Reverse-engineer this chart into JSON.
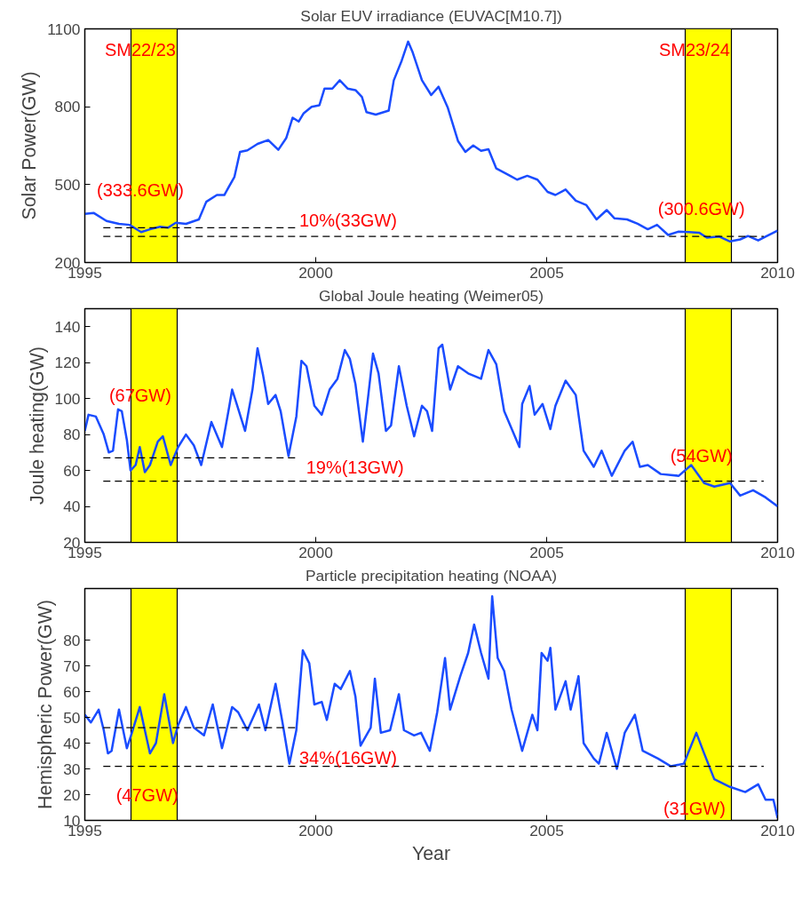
{
  "chart_data": [
    {
      "type": "line",
      "title": "Solar EUV irradiance (EUVAC[M10.7])",
      "ylabel": "Solar Power(GW)",
      "xlim": [
        1995,
        2010
      ],
      "xticks": [
        1995,
        2000,
        2005,
        2010
      ],
      "ylim": [
        200,
        1100
      ],
      "yticks": [
        200,
        500,
        800,
        1100
      ],
      "grid": false,
      "series": [
        {
          "color": "#1a4cff",
          "x": [
            1995.0,
            1995.19,
            1995.47,
            1995.74,
            1995.97,
            1996.22,
            1996.41,
            1996.63,
            1996.8,
            1996.97,
            1997.19,
            1997.47,
            1997.63,
            1997.86,
            1998.02,
            1998.24,
            1998.36,
            1998.52,
            1998.74,
            1998.97,
            1999.19,
            1999.36,
            1999.5,
            1999.63,
            1999.74,
            1999.91,
            2000.08,
            2000.19,
            2000.36,
            2000.52,
            2000.69,
            2000.86,
            2001.0,
            2001.1,
            2001.3,
            2001.58,
            2001.69,
            2001.86,
            2002.0,
            2002.1,
            2002.3,
            2002.5,
            2002.66,
            2002.86,
            2003.08,
            2003.24,
            2003.41,
            2003.58,
            2003.74,
            2003.91,
            2004.19,
            2004.36,
            2004.58,
            2004.8,
            2005.02,
            2005.19,
            2005.41,
            2005.63,
            2005.86,
            2006.08,
            2006.3,
            2006.47,
            2006.74,
            2006.97,
            2007.19,
            2007.39,
            2007.63,
            2007.86,
            2008.08,
            2008.3,
            2008.47,
            2008.74,
            2008.97,
            2009.19,
            2009.36,
            2009.58,
            2009.74,
            2010.0
          ],
          "values": [
            387,
            391,
            360,
            349,
            345,
            317,
            328,
            338,
            334,
            353,
            349,
            366,
            434,
            460,
            460,
            530,
            626,
            632,
            657,
            672,
            634,
            679,
            758,
            743,
            775,
            800,
            806,
            870,
            870,
            902,
            870,
            864,
            838,
            779,
            770,
            785,
            902,
            977,
            1051,
            1009,
            902,
            845,
            877,
            796,
            668,
            626,
            651,
            630,
            636,
            562,
            536,
            519,
            534,
            519,
            472,
            460,
            481,
            438,
            421,
            366,
            402,
            370,
            366,
            349,
            328,
            345,
            306,
            319,
            317,
            315,
            296,
            300,
            281,
            289,
            302,
            285,
            300,
            323
          ]
        },
        {
          "type": "line",
          "color": "#000000",
          "line_style": "dashed",
          "x": [
            1995.4,
            1999.6
          ],
          "values": [
            333.6,
            333.6
          ]
        },
        {
          "type": "line",
          "color": "#000000",
          "line_style": "dashed",
          "x": [
            1995.4,
            2009.7
          ],
          "values": [
            300.6,
            300.6
          ]
        }
      ],
      "bands": [
        {
          "axis": "x",
          "from": 1996,
          "to": 1997,
          "color": "#ffff00"
        },
        {
          "axis": "x",
          "from": 2008,
          "to": 2009,
          "color": "#ffff00"
        }
      ],
      "annotations": [
        "SM22/23",
        "SM23/24",
        "(333.6GW)",
        "10%(33GW)",
        "(300.6GW)"
      ]
    },
    {
      "type": "line",
      "title": "Global Joule heating (Weimer05)",
      "ylabel": "Joule heating(GW)",
      "xlim": [
        1995,
        2010
      ],
      "xticks": [
        1995,
        2000,
        2005,
        2010
      ],
      "ylim": [
        20,
        150
      ],
      "yticks": [
        20,
        40,
        60,
        80,
        100,
        120,
        140
      ],
      "grid": false,
      "series": [
        {
          "color": "#1a4cff",
          "x": [
            1995.0,
            1995.08,
            1995.24,
            1995.41,
            1995.52,
            1995.61,
            1995.72,
            1995.8,
            1995.91,
            1995.99,
            1996.1,
            1996.19,
            1996.3,
            1996.41,
            1996.58,
            1996.69,
            1996.86,
            1997.02,
            1997.19,
            1997.36,
            1997.52,
            1997.74,
            1997.97,
            1998.13,
            1998.19,
            1998.3,
            1998.47,
            1998.63,
            1998.74,
            1998.86,
            1998.97,
            1999.13,
            1999.24,
            1999.41,
            1999.58,
            1999.69,
            1999.8,
            1999.97,
            2000.13,
            2000.3,
            2000.47,
            2000.63,
            2000.74,
            2000.86,
            2001.02,
            2001.13,
            2001.24,
            2001.36,
            2001.52,
            2001.63,
            2001.8,
            2001.97,
            2002.13,
            2002.3,
            2002.41,
            2002.52,
            2002.66,
            2002.74,
            2002.91,
            2003.08,
            2003.3,
            2003.58,
            2003.74,
            2003.91,
            2004.08,
            2004.41,
            2004.47,
            2004.63,
            2004.74,
            2004.91,
            2005.08,
            2005.19,
            2005.41,
            2005.63,
            2005.8,
            2006.02,
            2006.19,
            2006.41,
            2006.69,
            2006.86,
            2007.02,
            2007.19,
            2007.47,
            2007.86,
            2008.13,
            2008.41,
            2008.63,
            2008.97,
            2009.19,
            2009.47,
            2009.74,
            2010.0
          ],
          "values": [
            82,
            91,
            90,
            80,
            70,
            71,
            94,
            93,
            77,
            60,
            63,
            73,
            59,
            63,
            76,
            79,
            63,
            73,
            80,
            74,
            63,
            87,
            73,
            96,
            105,
            96,
            82,
            105,
            128,
            113,
            97,
            102,
            93,
            68,
            90,
            121,
            118,
            96,
            91,
            105,
            111,
            127,
            122,
            108,
            76,
            100,
            125,
            114,
            82,
            85,
            118,
            96,
            79,
            96,
            93,
            82,
            128,
            130,
            105,
            118,
            114,
            111,
            127,
            119,
            93,
            73,
            97,
            107,
            91,
            97,
            83,
            96,
            110,
            102,
            71,
            62,
            71,
            57,
            71,
            76,
            62,
            63,
            58,
            57,
            63,
            53,
            51,
            53,
            46,
            49,
            45,
            40
          ]
        },
        {
          "type": "line",
          "color": "#000000",
          "line_style": "dashed",
          "x": [
            1995.4,
            1999.6
          ],
          "values": [
            67,
            67
          ]
        },
        {
          "type": "line",
          "color": "#000000",
          "line_style": "dashed",
          "x": [
            1995.4,
            2009.7
          ],
          "values": [
            54,
            54
          ]
        }
      ],
      "bands": [
        {
          "axis": "x",
          "from": 1996,
          "to": 1997,
          "color": "#ffff00"
        },
        {
          "axis": "x",
          "from": 2008,
          "to": 2009,
          "color": "#ffff00"
        }
      ],
      "annotations": [
        "(67GW)",
        "19%(13GW)",
        "(54GW)"
      ]
    },
    {
      "type": "line",
      "title": "Particle precipitation heating (NOAA)",
      "xlabel": "Year",
      "ylabel": "Hemispheric Power(GW)",
      "xlim": [
        1995,
        2010
      ],
      "xticks": [
        1995,
        2000,
        2005,
        2010
      ],
      "ylim": [
        10,
        100
      ],
      "yticks": [
        10,
        20,
        30,
        40,
        50,
        60,
        70,
        80
      ],
      "grid": false,
      "series": [
        {
          "color": "#1a4cff",
          "x": [
            1995.0,
            1995.13,
            1995.3,
            1995.41,
            1995.5,
            1995.58,
            1995.74,
            1995.91,
            1996.02,
            1996.19,
            1996.41,
            1996.54,
            1996.72,
            1996.91,
            1997.02,
            1997.19,
            1997.36,
            1997.58,
            1997.77,
            1997.97,
            1998.19,
            1998.32,
            1998.52,
            1998.77,
            1998.91,
            1999.13,
            1999.28,
            1999.43,
            1999.58,
            1999.72,
            1999.86,
            1999.97,
            2000.13,
            2000.24,
            2000.41,
            2000.54,
            2000.74,
            2000.86,
            2000.97,
            2001.19,
            2001.28,
            2001.41,
            2001.61,
            2001.8,
            2001.91,
            2002.13,
            2002.28,
            2002.47,
            2002.63,
            2002.8,
            2002.91,
            2003.13,
            2003.3,
            2003.43,
            2003.58,
            2003.74,
            2003.82,
            2003.94,
            2004.08,
            2004.24,
            2004.47,
            2004.69,
            2004.8,
            2004.89,
            2005.02,
            2005.08,
            2005.19,
            2005.41,
            2005.52,
            2005.69,
            2005.8,
            2006.02,
            2006.13,
            2006.3,
            2006.52,
            2006.69,
            2006.91,
            2007.08,
            2007.41,
            2007.69,
            2007.97,
            2008.24,
            2008.41,
            2008.63,
            2008.97,
            2009.3,
            2009.58,
            2009.74,
            2009.91,
            2010.0
          ],
          "values": [
            51,
            48,
            53,
            45,
            36,
            37,
            53,
            38,
            44,
            54,
            36,
            40,
            59,
            40,
            47,
            54,
            46,
            43,
            55,
            38,
            54,
            52,
            45,
            55,
            45,
            63,
            48,
            32,
            45,
            76,
            71,
            55,
            56,
            49,
            63,
            61,
            68,
            58,
            39,
            46,
            65,
            44,
            45,
            59,
            45,
            43,
            44,
            37,
            52,
            73,
            53,
            66,
            75,
            86,
            75,
            65,
            97,
            73,
            68,
            53,
            37,
            51,
            45,
            75,
            72,
            77,
            53,
            64,
            53,
            66,
            40,
            34,
            32,
            44,
            30,
            44,
            51,
            37,
            34,
            31,
            32,
            44,
            36,
            26,
            23,
            21,
            24,
            18,
            18,
            11
          ]
        },
        {
          "type": "line",
          "color": "#000000",
          "line_style": "dashed",
          "x": [
            1995.4,
            1999.6
          ],
          "values": [
            46,
            46
          ]
        },
        {
          "type": "line",
          "color": "#000000",
          "line_style": "dashed",
          "x": [
            1995.4,
            2009.7
          ],
          "values": [
            31,
            31
          ]
        }
      ],
      "bands": [
        {
          "axis": "x",
          "from": 1996,
          "to": 1997,
          "color": "#ffff00"
        },
        {
          "axis": "x",
          "from": 2008,
          "to": 2009,
          "color": "#ffff00"
        }
      ],
      "annotations": [
        "(47GW)",
        "34%(16GW)",
        "(31GW)"
      ]
    }
  ]
}
